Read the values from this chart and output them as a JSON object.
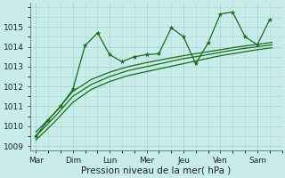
{
  "xlabel": "Pression niveau de la mer( hPa )",
  "bg_color": "#c8ece9",
  "grid_color": "#9ed4cf",
  "line_color": "#1a6b1a",
  "days": [
    "Mar",
    "Dim",
    "Lun",
    "Mer",
    "Jeu",
    "Ven",
    "Sam"
  ],
  "day_x": [
    0,
    1,
    2,
    3,
    4,
    5,
    6
  ],
  "ylim": [
    1008.8,
    1016.2
  ],
  "yticks": [
    1009,
    1010,
    1011,
    1012,
    1013,
    1014,
    1015
  ],
  "main_x": [
    0,
    0.33,
    0.67,
    1.0,
    1.33,
    1.67,
    2.0,
    2.33,
    2.67,
    3.0,
    3.33,
    3.67,
    4.0,
    4.33,
    4.67,
    5.0,
    5.33,
    5.67,
    6.0,
    6.33
  ],
  "main_y": [
    1009.5,
    1010.3,
    1011.0,
    1011.85,
    1014.05,
    1014.7,
    1013.6,
    1013.25,
    1013.5,
    1013.6,
    1013.65,
    1014.95,
    1014.5,
    1013.15,
    1014.2,
    1015.65,
    1015.75,
    1014.5,
    1014.1,
    1015.35
  ],
  "smooth1_x": [
    0,
    0.5,
    1.0,
    1.5,
    2.0,
    2.5,
    3.0,
    3.5,
    4.0,
    4.5,
    5.0,
    5.5,
    6.0,
    6.4
  ],
  "smooth1_y": [
    1009.3,
    1010.2,
    1011.2,
    1011.85,
    1012.25,
    1012.55,
    1012.75,
    1012.95,
    1013.15,
    1013.35,
    1013.55,
    1013.7,
    1013.85,
    1013.95
  ],
  "smooth2_x": [
    0,
    0.5,
    1.0,
    1.5,
    2.0,
    2.5,
    3.0,
    3.5,
    4.0,
    4.5,
    5.0,
    5.5,
    6.0,
    6.4
  ],
  "smooth2_y": [
    1009.5,
    1010.45,
    1011.5,
    1012.1,
    1012.5,
    1012.8,
    1013.0,
    1013.2,
    1013.4,
    1013.55,
    1013.72,
    1013.88,
    1014.0,
    1014.1
  ],
  "smooth3_x": [
    0,
    0.5,
    1.0,
    1.5,
    2.0,
    2.5,
    3.0,
    3.5,
    4.0,
    4.5,
    5.0,
    5.5,
    6.0,
    6.4
  ],
  "smooth3_y": [
    1009.7,
    1010.65,
    1011.75,
    1012.35,
    1012.72,
    1013.0,
    1013.2,
    1013.38,
    1013.55,
    1013.7,
    1013.85,
    1014.0,
    1014.12,
    1014.22
  ],
  "figsize": [
    3.2,
    2.0
  ],
  "dpi": 100,
  "xlabel_fontsize": 7.5,
  "tick_fontsize": 6.5
}
